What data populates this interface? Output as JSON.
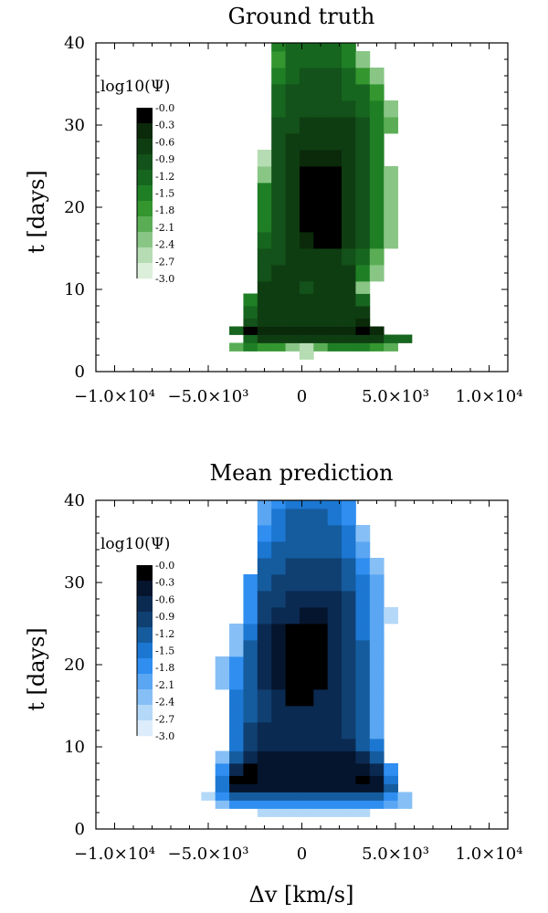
{
  "chart_data": [
    {
      "type": "heatmap",
      "title": "Ground truth",
      "xlabel": "",
      "ylabel": "t [days]",
      "xlim": [
        -11000,
        11000
      ],
      "ylim": [
        0,
        40
      ],
      "xticklabels": [
        "−1.0×10⁴",
        "−5.0×10³",
        "0",
        "5.0×10³",
        "1.0×10⁴"
      ],
      "yticklabels": [
        "0",
        "10",
        "20",
        "30",
        "40"
      ],
      "colorscale": "greens",
      "colorbar": {
        "title": "log10(Ψ)",
        "ticks": [
          "-0.0",
          "-0.3",
          "-0.6",
          "-0.9",
          "-1.2",
          "-1.5",
          "-1.8",
          "-2.1",
          "-2.4",
          "-2.7",
          "-3.0"
        ]
      },
      "x_bin_centers_kms": [
        -3500,
        -2750,
        -2000,
        -1250,
        -500,
        250,
        1000,
        1750,
        2500,
        3250,
        4000,
        4750,
        5500
      ],
      "t_bin_edges_days": [
        1.5,
        2.5,
        3.5,
        4.5,
        5.5,
        6.5,
        8,
        9.5,
        11,
        13,
        15,
        17,
        19,
        21,
        23,
        25,
        27,
        29,
        31,
        33,
        35,
        37,
        39,
        40
      ],
      "rows": [
        [
          null,
          null,
          null,
          null,
          null,
          -2.8,
          null,
          null,
          null,
          null,
          null,
          null,
          null
        ],
        [
          -2.3,
          -1.5,
          -1.8,
          -1.8,
          -2.5,
          -2.7,
          -2.3,
          -1.6,
          -1.5,
          -1.5,
          -1.8,
          -2.3,
          null
        ],
        [
          null,
          -1.2,
          -0.7,
          -0.7,
          -0.6,
          -0.6,
          -0.7,
          -0.8,
          -0.8,
          -0.6,
          -0.8,
          -1.2,
          -1.4
        ],
        [
          -1.2,
          -0.2,
          -0.3,
          -0.4,
          -0.5,
          -0.5,
          -0.5,
          -0.5,
          -0.3,
          -0.2,
          -0.4,
          null,
          null
        ],
        [
          null,
          -1.0,
          -0.7,
          -0.7,
          -0.7,
          -0.7,
          -0.7,
          -0.7,
          -0.6,
          -0.5,
          null,
          null,
          null
        ],
        [
          null,
          -1.3,
          -0.6,
          -0.6,
          -0.6,
          -0.6,
          -0.6,
          -0.6,
          -0.6,
          -0.8,
          null,
          null,
          null
        ],
        [
          null,
          -1.5,
          -0.6,
          -0.6,
          -0.6,
          -0.6,
          -0.6,
          -0.6,
          -0.6,
          -1.3,
          null,
          null,
          null
        ],
        [
          null,
          null,
          -0.6,
          -0.7,
          -0.7,
          -0.9,
          -0.7,
          -0.7,
          -0.6,
          -2.4,
          null,
          null,
          null
        ],
        [
          null,
          null,
          -0.9,
          -0.8,
          -0.7,
          -0.7,
          -0.7,
          -0.7,
          -0.8,
          -1.5,
          -2.6,
          null,
          null
        ],
        [
          null,
          null,
          -1.1,
          -0.9,
          -0.7,
          -0.7,
          -0.7,
          -0.7,
          -0.9,
          -1.4,
          -2.2,
          null,
          null
        ],
        [
          null,
          null,
          -1.4,
          -1.0,
          -0.6,
          -0.3,
          -0.1,
          -0.1,
          -0.6,
          -1.0,
          -1.7,
          -2.6,
          null
        ],
        [
          null,
          null,
          -1.6,
          -0.9,
          -0.6,
          -0.1,
          0.0,
          0.0,
          -0.6,
          -1.0,
          -1.6,
          -2.6,
          null
        ],
        [
          null,
          null,
          -1.7,
          -0.9,
          -0.6,
          -0.1,
          0.0,
          0.0,
          -0.6,
          -0.9,
          -1.6,
          -2.6,
          null
        ],
        [
          null,
          null,
          -1.7,
          -0.9,
          -0.6,
          -0.1,
          0.0,
          0.0,
          -0.6,
          -0.9,
          -1.5,
          -2.6,
          null
        ],
        [
          null,
          null,
          -2.4,
          -0.9,
          -0.6,
          -0.2,
          0.0,
          0.0,
          -0.6,
          -0.9,
          -1.5,
          -2.6,
          null
        ],
        [
          null,
          null,
          -2.7,
          -1.0,
          -0.6,
          -0.5,
          -0.3,
          -0.3,
          -0.6,
          -0.9,
          -1.6,
          null,
          null
        ],
        [
          null,
          null,
          null,
          -1.0,
          -0.7,
          -0.7,
          -0.6,
          -0.6,
          -0.6,
          -1.0,
          -1.7,
          null,
          null
        ],
        [
          null,
          null,
          null,
          -1.1,
          -0.9,
          -0.8,
          -0.8,
          -0.8,
          -0.8,
          -1.1,
          -1.7,
          -2.3,
          null
        ],
        [
          null,
          null,
          null,
          -1.2,
          -1.0,
          -0.9,
          -0.9,
          -0.9,
          -1.0,
          -1.2,
          -1.7,
          -2.4,
          null
        ],
        [
          null,
          null,
          null,
          -1.4,
          -1.1,
          -1.0,
          -1.0,
          -1.0,
          -1.2,
          -1.4,
          -1.8,
          null,
          null
        ],
        [
          null,
          null,
          null,
          -1.6,
          -1.2,
          -1.1,
          -1.1,
          -1.1,
          -1.3,
          -2.0,
          -2.6,
          null,
          null
        ],
        [
          null,
          null,
          null,
          -1.8,
          -1.2,
          -1.2,
          -1.2,
          -1.3,
          -1.5,
          -2.4,
          null,
          null,
          null
        ],
        [
          null,
          null,
          null,
          -1.6,
          -1.3,
          -1.3,
          -1.3,
          -1.4,
          -1.6,
          null,
          null,
          null,
          null
        ]
      ]
    },
    {
      "type": "heatmap",
      "title": "Mean prediction",
      "xlabel": "Δv [km/s]",
      "ylabel": "t [days]",
      "xlim": [
        -11000,
        11000
      ],
      "ylim": [
        0,
        40
      ],
      "xticklabels": [
        "−1.0×10⁴",
        "−5.0×10³",
        "0",
        "5.0×10³",
        "1.0×10⁴"
      ],
      "yticklabels": [
        "0",
        "10",
        "20",
        "30",
        "40"
      ],
      "colorscale": "blues",
      "colorbar": {
        "title": "log10(Ψ)",
        "ticks": [
          "-0.0",
          "-0.3",
          "-0.6",
          "-0.9",
          "-1.2",
          "-1.5",
          "-1.8",
          "-2.1",
          "-2.4",
          "-2.7",
          "-3.0"
        ]
      },
      "x_bin_centers_kms": [
        -5000,
        -4250,
        -3500,
        -2750,
        -2000,
        -1250,
        -500,
        250,
        1000,
        1750,
        2500,
        3250,
        4000,
        4750,
        5500
      ],
      "t_bin_edges_days": [
        1.5,
        2.5,
        3.5,
        4.5,
        5.5,
        6.5,
        8,
        9.5,
        11,
        13,
        15,
        17,
        19,
        21,
        23,
        25,
        27,
        29,
        31,
        33,
        35,
        37,
        39,
        40
      ],
      "rows": [
        [
          null,
          null,
          null,
          null,
          -2.7,
          -2.7,
          -2.7,
          -2.7,
          -2.7,
          -2.7,
          -2.7,
          -2.7,
          null,
          null,
          null
        ],
        [
          null,
          -2.5,
          -2.0,
          -1.9,
          -1.9,
          -1.9,
          -1.9,
          -1.9,
          -1.9,
          -1.9,
          -1.9,
          -1.9,
          -1.9,
          -2.2,
          -2.6
        ],
        [
          -2.7,
          -1.8,
          -1.4,
          -1.3,
          -1.3,
          -1.3,
          -1.3,
          -1.2,
          -1.3,
          -1.3,
          -1.3,
          -1.3,
          -1.4,
          -1.8,
          -2.5
        ],
        [
          null,
          -1.5,
          -0.5,
          -0.4,
          -0.5,
          -0.5,
          -0.5,
          -0.5,
          -0.5,
          -0.4,
          -0.3,
          -0.4,
          -0.5,
          -1.4,
          null
        ],
        [
          null,
          -1.6,
          -0.2,
          -0.1,
          -0.5,
          -0.5,
          -0.5,
          -0.5,
          -0.5,
          -0.4,
          -0.3,
          -0.2,
          -0.5,
          -1.6,
          null
        ],
        [
          null,
          -2.0,
          -0.8,
          -0.2,
          -0.5,
          -0.5,
          -0.5,
          -0.5,
          -0.5,
          -0.5,
          -0.3,
          -0.3,
          -0.6,
          -2.0,
          null
        ],
        [
          null,
          -2.4,
          -1.2,
          -0.6,
          -0.5,
          -0.5,
          -0.5,
          -0.5,
          -0.5,
          -0.5,
          -0.5,
          -0.8,
          -1.2,
          null,
          null
        ],
        [
          null,
          null,
          -1.5,
          -1.0,
          -0.7,
          -0.6,
          -0.6,
          -0.6,
          -0.6,
          -0.6,
          -0.8,
          -1.2,
          -1.5,
          null,
          null
        ],
        [
          null,
          null,
          -1.5,
          -1.1,
          -0.8,
          -0.7,
          -0.6,
          -0.6,
          -0.6,
          -0.7,
          -1.0,
          -1.2,
          -2.3,
          null,
          null
        ],
        [
          null,
          null,
          -1.6,
          -1.2,
          -0.9,
          -0.7,
          -0.6,
          -0.6,
          -0.6,
          -0.7,
          -1.0,
          -1.2,
          -2.3,
          null,
          null
        ],
        [
          null,
          null,
          -1.7,
          -1.3,
          -1.0,
          -0.6,
          -0.2,
          -0.1,
          -0.6,
          -0.7,
          -1.0,
          -1.2,
          -2.2,
          null,
          null
        ],
        [
          null,
          -2.6,
          -1.8,
          -1.4,
          -0.6,
          -0.3,
          0.0,
          0.0,
          -0.2,
          -0.6,
          -1.0,
          -1.3,
          -2.2,
          null,
          null
        ],
        [
          null,
          -2.5,
          -1.8,
          -1.4,
          -0.6,
          -0.3,
          0.0,
          0.0,
          -0.1,
          -0.6,
          -1.0,
          -1.4,
          -2.2,
          null,
          null
        ],
        [
          null,
          null,
          -2.4,
          -1.4,
          -0.6,
          -0.3,
          0.0,
          0.0,
          -0.1,
          -0.6,
          -1.0,
          -1.4,
          -2.2,
          null,
          null
        ],
        [
          null,
          null,
          -2.6,
          -1.6,
          -0.6,
          -0.3,
          -0.1,
          0.0,
          -0.1,
          -0.6,
          -1.0,
          -1.5,
          -2.2,
          null,
          null
        ],
        [
          null,
          null,
          null,
          -1.8,
          -1.1,
          -0.7,
          -0.6,
          -0.5,
          -0.5,
          -0.6,
          -1.0,
          -1.6,
          -2.3,
          -2.7,
          null
        ],
        [
          null,
          null,
          null,
          -1.8,
          -1.1,
          -1.0,
          -0.7,
          -0.6,
          -0.7,
          -0.7,
          -1.1,
          -1.6,
          -2.3,
          null,
          null
        ],
        [
          null,
          null,
          null,
          -2.0,
          -1.2,
          -1.1,
          -0.9,
          -0.9,
          -0.9,
          -1.0,
          -1.2,
          -1.7,
          -2.3,
          null,
          null
        ],
        [
          null,
          null,
          null,
          null,
          -1.3,
          -1.2,
          -1.1,
          -1.1,
          -1.1,
          -1.1,
          -1.3,
          -1.8,
          -2.4,
          null,
          null
        ],
        [
          null,
          null,
          null,
          null,
          -1.6,
          -1.3,
          -1.2,
          -1.2,
          -1.2,
          -1.2,
          -1.5,
          -2.1,
          null,
          null,
          null
        ],
        [
          null,
          null,
          null,
          null,
          -1.8,
          -1.5,
          -1.3,
          -1.3,
          -1.3,
          -1.4,
          -1.7,
          -2.6,
          null,
          null,
          null
        ],
        [
          null,
          null,
          null,
          null,
          -2.1,
          -1.7,
          -1.4,
          -1.4,
          -1.4,
          -1.5,
          -1.9,
          null,
          null,
          null,
          null
        ],
        [
          null,
          null,
          null,
          null,
          -2.2,
          -1.8,
          -1.5,
          -1.5,
          -1.5,
          -1.6,
          -2.0,
          null,
          null,
          null,
          null
        ]
      ]
    }
  ]
}
